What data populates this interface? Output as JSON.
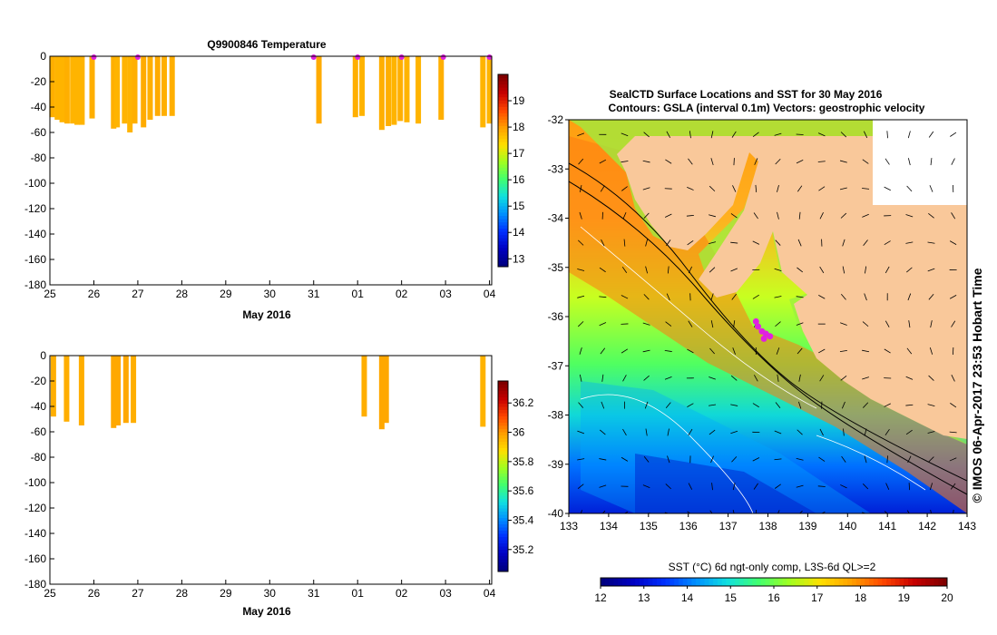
{
  "chart_data": [
    {
      "id": "profile-temperature",
      "type": "bar",
      "title": "Q9900846  Temperature",
      "xlabel": "May 2016",
      "ylabel": "",
      "x_tick_labels": [
        "25",
        "26",
        "27",
        "28",
        "29",
        "30",
        "31",
        "01",
        "02",
        "03",
        "04"
      ],
      "xlim_days": [
        25,
        35.05
      ],
      "y_ticks": [
        0,
        -20,
        -40,
        -60,
        -80,
        -100,
        -120,
        -140,
        -160,
        -180
      ],
      "ylim": [
        -180,
        0
      ],
      "colorbar": {
        "ticks": [
          13,
          14,
          15,
          16,
          17,
          18,
          19
        ],
        "range": [
          12.7,
          20.0
        ]
      },
      "casts": [
        {
          "x": 25.05,
          "depth": -48,
          "value": 17.85
        },
        {
          "x": 25.17,
          "depth": -50,
          "value": 17.8
        },
        {
          "x": 25.28,
          "depth": -52,
          "value": 17.8
        },
        {
          "x": 25.39,
          "depth": -53,
          "value": 17.85
        },
        {
          "x": 25.52,
          "depth": -53,
          "value": 17.8
        },
        {
          "x": 25.62,
          "depth": -54,
          "value": 17.8
        },
        {
          "x": 25.73,
          "depth": -54,
          "value": 17.8
        },
        {
          "x": 25.96,
          "depth": -49,
          "value": 17.85
        },
        {
          "x": 26.45,
          "depth": -57,
          "value": 17.85
        },
        {
          "x": 26.53,
          "depth": -56,
          "value": 17.8
        },
        {
          "x": 26.7,
          "depth": -53,
          "value": 17.8
        },
        {
          "x": 26.82,
          "depth": -60,
          "value": 17.8
        },
        {
          "x": 26.93,
          "depth": -53,
          "value": 17.85
        },
        {
          "x": 27.13,
          "depth": -56,
          "value": 17.9
        },
        {
          "x": 27.28,
          "depth": -50,
          "value": 17.85
        },
        {
          "x": 27.45,
          "depth": -47,
          "value": 17.9
        },
        {
          "x": 27.6,
          "depth": -47,
          "value": 17.85
        },
        {
          "x": 27.78,
          "depth": -47,
          "value": 17.85
        },
        {
          "x": 31.12,
          "depth": -53,
          "value": 17.9
        },
        {
          "x": 31.95,
          "depth": -48,
          "value": 17.85
        },
        {
          "x": 32.1,
          "depth": -47,
          "value": 17.8
        },
        {
          "x": 32.55,
          "depth": -58,
          "value": 17.85
        },
        {
          "x": 32.7,
          "depth": -55,
          "value": 17.85
        },
        {
          "x": 32.83,
          "depth": -54,
          "value": 17.8
        },
        {
          "x": 32.97,
          "depth": -51,
          "value": 17.85
        },
        {
          "x": 33.12,
          "depth": -52,
          "value": 17.8
        },
        {
          "x": 33.38,
          "depth": -53,
          "value": 17.8
        },
        {
          "x": 33.9,
          "depth": -50,
          "value": 17.85
        },
        {
          "x": 34.85,
          "depth": -56,
          "value": 17.8
        },
        {
          "x": 35.0,
          "depth": -53,
          "value": 17.8
        }
      ],
      "markers_x": [
        26.0,
        27.0,
        31.0,
        32.0,
        33.0,
        33.95,
        35.0
      ]
    },
    {
      "id": "profile-salinity",
      "type": "bar",
      "title": "",
      "xlabel": "May 2016",
      "ylabel": "",
      "x_tick_labels": [
        "25",
        "26",
        "27",
        "28",
        "29",
        "30",
        "31",
        "01",
        "02",
        "03",
        "04"
      ],
      "xlim_days": [
        25,
        35.05
      ],
      "y_ticks": [
        0,
        -20,
        -40,
        -60,
        -80,
        -100,
        -120,
        -140,
        -160,
        -180
      ],
      "ylim": [
        -180,
        0
      ],
      "colorbar": {
        "ticks": [
          35.2,
          35.4,
          35.6,
          35.8,
          36,
          36.2
        ],
        "range": [
          35.05,
          36.35
        ]
      },
      "casts": [
        {
          "x": 25.08,
          "depth": -48,
          "value": 35.97
        },
        {
          "x": 25.38,
          "depth": -52,
          "value": 35.97
        },
        {
          "x": 25.72,
          "depth": -55,
          "value": 35.97
        },
        {
          "x": 26.45,
          "depth": -57,
          "value": 35.98
        },
        {
          "x": 26.55,
          "depth": -55,
          "value": 35.98
        },
        {
          "x": 26.73,
          "depth": -53,
          "value": 35.98
        },
        {
          "x": 26.9,
          "depth": -53,
          "value": 35.97
        },
        {
          "x": 32.15,
          "depth": -48,
          "value": 35.97
        },
        {
          "x": 32.55,
          "depth": -58,
          "value": 35.98
        },
        {
          "x": 32.65,
          "depth": -53,
          "value": 35.98
        },
        {
          "x": 34.85,
          "depth": -56,
          "value": 35.96
        }
      ]
    },
    {
      "id": "sst-map",
      "type": "heatmap",
      "title": "SealCTD Surface Locations and SST for 30 May 2016",
      "subtitle": "Contours: GSLA (interval 0.1m) Vectors: geostrophic velocity",
      "x_ticks": [
        133,
        134,
        135,
        136,
        137,
        138,
        139,
        140,
        141,
        142,
        143
      ],
      "y_ticks": [
        -32,
        -33,
        -34,
        -35,
        -36,
        -37,
        -38,
        -39,
        -40
      ],
      "xlim": [
        133,
        143
      ],
      "ylim": [
        -40,
        -32
      ],
      "side_label": "© IMOS 06-Apr-2017 23:53 Hobart Time",
      "colorbar_title": "SST (°C) 6d ngt-only comp, L3S-6d QL>=2",
      "colorbar_ticks": [
        12,
        13,
        14,
        15,
        16,
        17,
        18,
        19,
        20
      ],
      "colorbar_range": [
        12,
        20
      ],
      "seal_locations": [
        {
          "lon": 137.85,
          "lat": -36.3
        },
        {
          "lon": 137.95,
          "lat": -36.35
        },
        {
          "lon": 138.05,
          "lat": -36.4
        },
        {
          "lon": 137.75,
          "lat": -36.2
        },
        {
          "lon": 137.9,
          "lat": -36.45
        },
        {
          "lon": 137.7,
          "lat": -36.1
        }
      ]
    }
  ],
  "colors": {
    "land": "#f9c89a",
    "marker": "#e020e0",
    "colormap": [
      "#00007f",
      "#0000c4",
      "#0030ff",
      "#0090ff",
      "#10e0e0",
      "#40ff70",
      "#a0ff20",
      "#ffe000",
      "#ffa000",
      "#ff4800",
      "#c80000",
      "#800000"
    ]
  }
}
